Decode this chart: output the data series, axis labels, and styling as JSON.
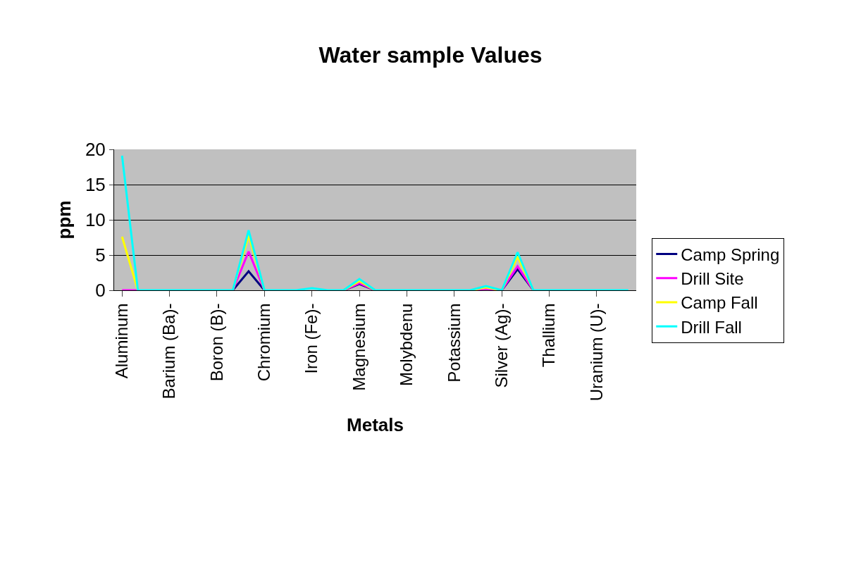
{
  "chart_data": {
    "type": "line",
    "title": "Water sample Values",
    "xlabel": "Metals",
    "ylabel": "ppm",
    "categories": [
      "Aluminum",
      null,
      null,
      "Barium (Ba)-",
      null,
      null,
      "Boron (B)-",
      null,
      null,
      "Chromium",
      null,
      null,
      "Iron (Fe)-",
      null,
      null,
      "Magnesium",
      null,
      null,
      "Molybdenu",
      null,
      null,
      "Potassium",
      null,
      null,
      "Silver (Ag)-",
      null,
      null,
      "Thallium",
      null,
      null,
      "Uranium (U)-",
      null,
      null
    ],
    "series": [
      {
        "name": "Camp Spring",
        "color": "#000080",
        "values": [
          null,
          null,
          null,
          null,
          null,
          null,
          null,
          0,
          2.7,
          0,
          null,
          null,
          null,
          null,
          0,
          0.9,
          0,
          null,
          null,
          null,
          null,
          null,
          null,
          null,
          0,
          3.0,
          0,
          null,
          null,
          null,
          null,
          null,
          null
        ]
      },
      {
        "name": "Drill Site",
        "color": "#ff00ff",
        "values": [
          0,
          0,
          null,
          null,
          null,
          null,
          null,
          0,
          5.5,
          0,
          null,
          null,
          null,
          null,
          0,
          1.0,
          0,
          null,
          null,
          null,
          null,
          null,
          0,
          0.2,
          0,
          3.4,
          0,
          null,
          null,
          null,
          null,
          null,
          null
        ]
      },
      {
        "name": "Camp Fall",
        "color": "#ffff00",
        "values": [
          7.6,
          0,
          null,
          null,
          null,
          null,
          null,
          0,
          7.8,
          0,
          null,
          null,
          null,
          null,
          0,
          1.3,
          0,
          null,
          null,
          null,
          null,
          null,
          0,
          0.4,
          0,
          4.8,
          0,
          null,
          null,
          null,
          null,
          null,
          null
        ]
      },
      {
        "name": "Drill Fall",
        "color": "#00ffff",
        "values": [
          19.1,
          0,
          0,
          0,
          0,
          0,
          0,
          0,
          8.5,
          0,
          0,
          0,
          0.3,
          0,
          0,
          1.6,
          0,
          0,
          0,
          0,
          0,
          0,
          0,
          0.6,
          0,
          5.4,
          0,
          0,
          0,
          0,
          0,
          0,
          0
        ]
      }
    ],
    "ylim": [
      0,
      20
    ],
    "yticks": [
      0,
      5,
      10,
      15,
      20
    ],
    "grid": "y",
    "legend": "right",
    "marker": "none",
    "line_style": "solid"
  }
}
